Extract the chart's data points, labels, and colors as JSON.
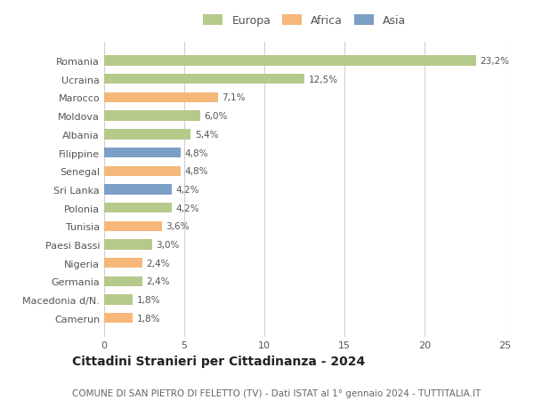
{
  "categories": [
    "Romania",
    "Ucraina",
    "Marocco",
    "Moldova",
    "Albania",
    "Filippine",
    "Senegal",
    "Sri Lanka",
    "Polonia",
    "Tunisia",
    "Paesi Bassi",
    "Nigeria",
    "Germania",
    "Macedonia d/N.",
    "Camerun"
  ],
  "values": [
    23.2,
    12.5,
    7.1,
    6.0,
    5.4,
    4.8,
    4.8,
    4.2,
    4.2,
    3.6,
    3.0,
    2.4,
    2.4,
    1.8,
    1.8
  ],
  "labels": [
    "23,2%",
    "12,5%",
    "7,1%",
    "6,0%",
    "5,4%",
    "4,8%",
    "4,8%",
    "4,2%",
    "4,2%",
    "3,6%",
    "3,0%",
    "2,4%",
    "2,4%",
    "1,8%",
    "1,8%"
  ],
  "continents": [
    "Europa",
    "Europa",
    "Africa",
    "Europa",
    "Europa",
    "Asia",
    "Africa",
    "Asia",
    "Europa",
    "Africa",
    "Europa",
    "Africa",
    "Europa",
    "Europa",
    "Africa"
  ],
  "colors": {
    "Europa": "#b5c98a",
    "Africa": "#f5b87a",
    "Asia": "#7b9fc7"
  },
  "xlim": [
    0,
    25
  ],
  "xticks": [
    0,
    5,
    10,
    15,
    20,
    25
  ],
  "title": "Cittadini Stranieri per Cittadinanza - 2024",
  "subtitle": "COMUNE DI SAN PIETRO DI FELETTO (TV) - Dati ISTAT al 1° gennaio 2024 - TUTTITALIA.IT",
  "title_fontsize": 10,
  "subtitle_fontsize": 7.5,
  "background_color": "#ffffff",
  "grid_color": "#d0d0d0",
  "bar_height": 0.55,
  "bar_alpha": 1.0,
  "label_fontsize": 7.5,
  "ytick_fontsize": 8,
  "xtick_fontsize": 8,
  "legend_fontsize": 9
}
